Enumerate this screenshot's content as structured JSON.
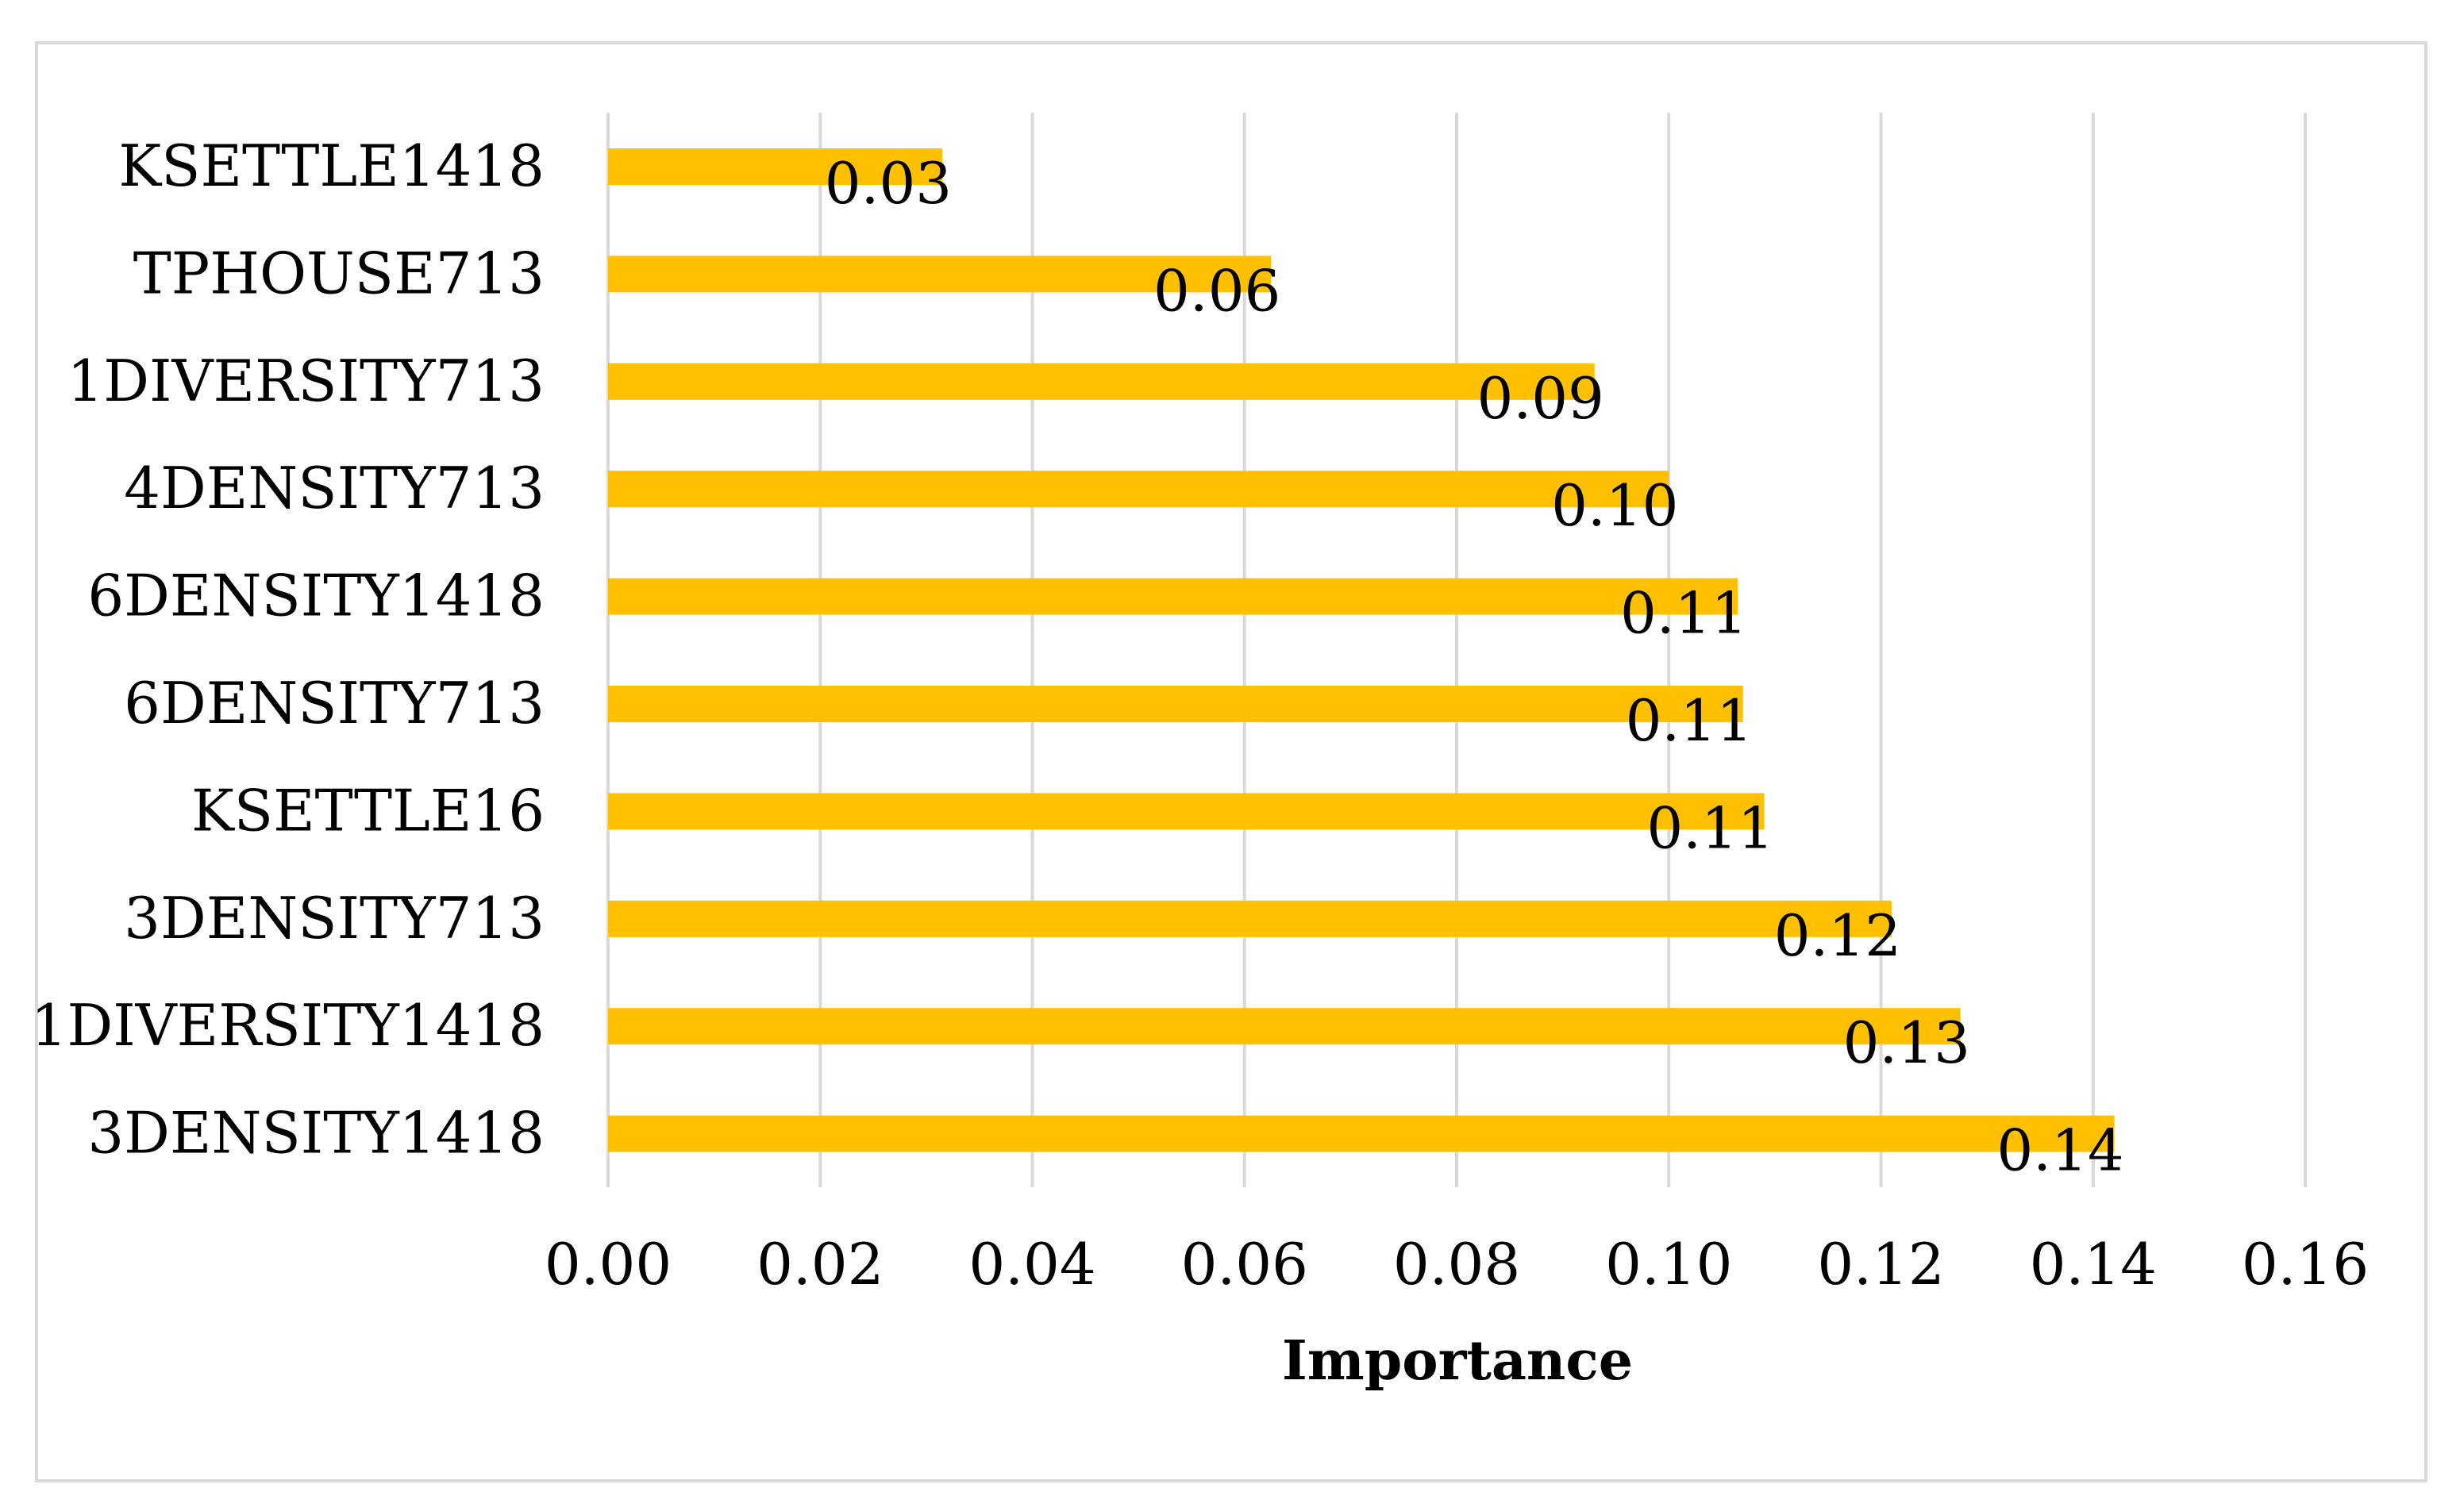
{
  "chart_data": {
    "type": "bar",
    "orientation": "horizontal",
    "title": "",
    "xlabel": "Importance",
    "ylabel": "",
    "xlim": [
      0,
      0.16
    ],
    "x_ticks": [
      "0.00",
      "0.02",
      "0.04",
      "0.06",
      "0.08",
      "0.10",
      "0.12",
      "0.14",
      "0.16"
    ],
    "grid": true,
    "bar_color": "#FFC000",
    "grid_color": "#D9D9D9",
    "categories": [
      "KSETTLE1418",
      "TPHOUSE713",
      "1DIVERSITY713",
      "4DENSITY713",
      "6DENSITY1418",
      "6DENSITY713",
      "KSETTLE16",
      "3DENSITY713",
      "1DIVERSITY1418",
      "3DENSITY1418"
    ],
    "values": [
      0.0315,
      0.0625,
      0.093,
      0.1,
      0.1065,
      0.107,
      0.109,
      0.121,
      0.1275,
      0.142
    ],
    "data_labels": [
      "0.03",
      "0.06",
      "0.09",
      "0.10",
      "0.11",
      "0.11",
      "0.11",
      "0.12",
      "0.13",
      "0.14"
    ]
  }
}
